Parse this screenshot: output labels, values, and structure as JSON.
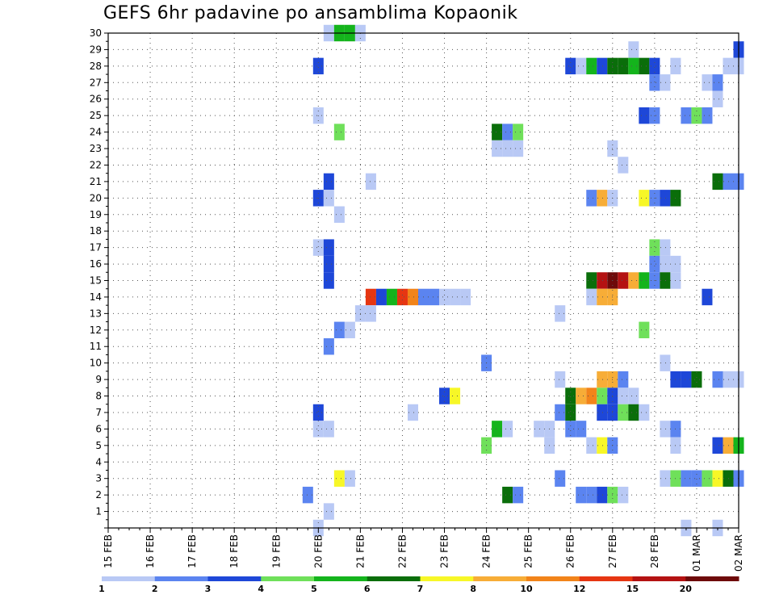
{
  "chart_data": {
    "type": "heatmap",
    "title": "GEFS 6hr padavine po ansamblima Kopaonik",
    "xlabel": "",
    "ylabel": "",
    "x_labels": [
      "15 FEB",
      "16 FEB",
      "17 FEB",
      "18 FEB",
      "19 FEB",
      "20 FEB",
      "21 FEB",
      "22 FEB",
      "23 FEB",
      "24 FEB",
      "25 FEB",
      "26 FEB",
      "27 FEB",
      "28 FEB",
      "01 MAR",
      "02 MAR"
    ],
    "x_range": [
      0,
      60
    ],
    "x_unit": "6-hour steps from 15 FEB 00Z",
    "y_labels": [
      "1",
      "2",
      "3",
      "4",
      "5",
      "6",
      "7",
      "8",
      "9",
      "10",
      "11",
      "12",
      "13",
      "14",
      "15",
      "16",
      "17",
      "18",
      "19",
      "20",
      "21",
      "22",
      "23",
      "24",
      "25",
      "26",
      "27",
      "28",
      "29",
      "30"
    ],
    "y_range": [
      0,
      30
    ],
    "grid": true,
    "legend": {
      "placement": "bottom",
      "levels": [
        "1",
        "2",
        "3",
        "4",
        "5",
        "6",
        "7",
        "8",
        "10",
        "12",
        "15",
        "20"
      ],
      "colors": [
        "#b9c9f5",
        "#5b84f0",
        "#1e47d8",
        "#6fe05a",
        "#14b41c",
        "#0a6e0a",
        "#f7f727",
        "#f7ad37",
        "#f2841a",
        "#e63612",
        "#b41212",
        "#6e0a0a"
      ]
    },
    "cells": [
      [
        21,
        30,
        1
      ],
      [
        22,
        30,
        5
      ],
      [
        23,
        30,
        5
      ],
      [
        24,
        30,
        1
      ],
      [
        60,
        29,
        3
      ],
      [
        50,
        29,
        1
      ],
      [
        20,
        28,
        3
      ],
      [
        44,
        28,
        3
      ],
      [
        45,
        28,
        1
      ],
      [
        46,
        28,
        5
      ],
      [
        47,
        28,
        3
      ],
      [
        48,
        28,
        6
      ],
      [
        49,
        28,
        6
      ],
      [
        50,
        28,
        5
      ],
      [
        51,
        28,
        6
      ],
      [
        52,
        28,
        3
      ],
      [
        54,
        28,
        1
      ],
      [
        59,
        28,
        1
      ],
      [
        60,
        28,
        1
      ],
      [
        52,
        27,
        2
      ],
      [
        53,
        27,
        1
      ],
      [
        57,
        27,
        1
      ],
      [
        58,
        27,
        2
      ],
      [
        58,
        26,
        1
      ],
      [
        20,
        25,
        1
      ],
      [
        51,
        25,
        3
      ],
      [
        52,
        25,
        2
      ],
      [
        55,
        25,
        2
      ],
      [
        56,
        25,
        4
      ],
      [
        57,
        25,
        2
      ],
      [
        22,
        24,
        4
      ],
      [
        37,
        24,
        6
      ],
      [
        38,
        24,
        2
      ],
      [
        39,
        24,
        4
      ],
      [
        37,
        23,
        1
      ],
      [
        38,
        23,
        1
      ],
      [
        39,
        23,
        1
      ],
      [
        48,
        23,
        1
      ],
      [
        49,
        22,
        1
      ],
      [
        21,
        21,
        3
      ],
      [
        25,
        21,
        1
      ],
      [
        58,
        21,
        6
      ],
      [
        59,
        21,
        2
      ],
      [
        60,
        21,
        2
      ],
      [
        20,
        20,
        3
      ],
      [
        21,
        20,
        1
      ],
      [
        46,
        20,
        2
      ],
      [
        47,
        20,
        8
      ],
      [
        48,
        20,
        1
      ],
      [
        51,
        20,
        7
      ],
      [
        52,
        20,
        2
      ],
      [
        53,
        20,
        3
      ],
      [
        54,
        20,
        6
      ],
      [
        22,
        19,
        1
      ],
      [
        20,
        17,
        1
      ],
      [
        21,
        17,
        3
      ],
      [
        52,
        17,
        4
      ],
      [
        53,
        17,
        1
      ],
      [
        21,
        16,
        3
      ],
      [
        52,
        16,
        2
      ],
      [
        53,
        16,
        1
      ],
      [
        54,
        16,
        1
      ],
      [
        21,
        15,
        3
      ],
      [
        46,
        15,
        6
      ],
      [
        47,
        15,
        11
      ],
      [
        48,
        15,
        12
      ],
      [
        49,
        15,
        11
      ],
      [
        50,
        15,
        8
      ],
      [
        51,
        15,
        5
      ],
      [
        52,
        15,
        2
      ],
      [
        53,
        15,
        6
      ],
      [
        54,
        15,
        1
      ],
      [
        25,
        14,
        10
      ],
      [
        26,
        14,
        3
      ],
      [
        27,
        14,
        5
      ],
      [
        28,
        14,
        10
      ],
      [
        29,
        14,
        9
      ],
      [
        30,
        14,
        2
      ],
      [
        31,
        14,
        2
      ],
      [
        32,
        14,
        1
      ],
      [
        33,
        14,
        1
      ],
      [
        34,
        14,
        1
      ],
      [
        46,
        14,
        1
      ],
      [
        47,
        14,
        8
      ],
      [
        48,
        14,
        8
      ],
      [
        57,
        14,
        3
      ],
      [
        24,
        13,
        1
      ],
      [
        25,
        13,
        1
      ],
      [
        43,
        13,
        1
      ],
      [
        22,
        12,
        2
      ],
      [
        23,
        12,
        1
      ],
      [
        51,
        12,
        4
      ],
      [
        21,
        11,
        2
      ],
      [
        36,
        10,
        2
      ],
      [
        53,
        10,
        1
      ],
      [
        43,
        9,
        1
      ],
      [
        47,
        9,
        8
      ],
      [
        48,
        9,
        8
      ],
      [
        49,
        9,
        2
      ],
      [
        54,
        9,
        3
      ],
      [
        55,
        9,
        3
      ],
      [
        56,
        9,
        6
      ],
      [
        58,
        9,
        2
      ],
      [
        59,
        9,
        1
      ],
      [
        60,
        9,
        1
      ],
      [
        32,
        8,
        3
      ],
      [
        33,
        8,
        7
      ],
      [
        44,
        8,
        6
      ],
      [
        45,
        8,
        8
      ],
      [
        46,
        8,
        9
      ],
      [
        47,
        8,
        4
      ],
      [
        48,
        8,
        3
      ],
      [
        49,
        8,
        1
      ],
      [
        50,
        8,
        1
      ],
      [
        20,
        7,
        3
      ],
      [
        29,
        7,
        1
      ],
      [
        43,
        7,
        2
      ],
      [
        44,
        7,
        6
      ],
      [
        47,
        7,
        3
      ],
      [
        48,
        7,
        3
      ],
      [
        49,
        7,
        4
      ],
      [
        50,
        7,
        6
      ],
      [
        51,
        7,
        1
      ],
      [
        20,
        6,
        1
      ],
      [
        21,
        6,
        1
      ],
      [
        37,
        6,
        5
      ],
      [
        38,
        6,
        1
      ],
      [
        41,
        6,
        1
      ],
      [
        42,
        6,
        1
      ],
      [
        44,
        6,
        2
      ],
      [
        45,
        6,
        2
      ],
      [
        53,
        6,
        1
      ],
      [
        54,
        6,
        2
      ],
      [
        36,
        5,
        4
      ],
      [
        42,
        5,
        1
      ],
      [
        46,
        5,
        1
      ],
      [
        47,
        5,
        7
      ],
      [
        48,
        5,
        2
      ],
      [
        54,
        5,
        1
      ],
      [
        58,
        5,
        3
      ],
      [
        59,
        5,
        8
      ],
      [
        60,
        5,
        5
      ],
      [
        22,
        3,
        7
      ],
      [
        23,
        3,
        1
      ],
      [
        43,
        3,
        2
      ],
      [
        53,
        3,
        1
      ],
      [
        54,
        3,
        4
      ],
      [
        55,
        3,
        2
      ],
      [
        56,
        3,
        2
      ],
      [
        57,
        3,
        4
      ],
      [
        58,
        3,
        7
      ],
      [
        59,
        3,
        6
      ],
      [
        60,
        3,
        2
      ],
      [
        19,
        2,
        2
      ],
      [
        38,
        2,
        6
      ],
      [
        39,
        2,
        2
      ],
      [
        45,
        2,
        2
      ],
      [
        46,
        2,
        2
      ],
      [
        47,
        2,
        3
      ],
      [
        48,
        2,
        4
      ],
      [
        49,
        2,
        1
      ],
      [
        21,
        1,
        1
      ],
      [
        20,
        0,
        1
      ],
      [
        55,
        0,
        1
      ],
      [
        58,
        0,
        1
      ]
    ]
  }
}
